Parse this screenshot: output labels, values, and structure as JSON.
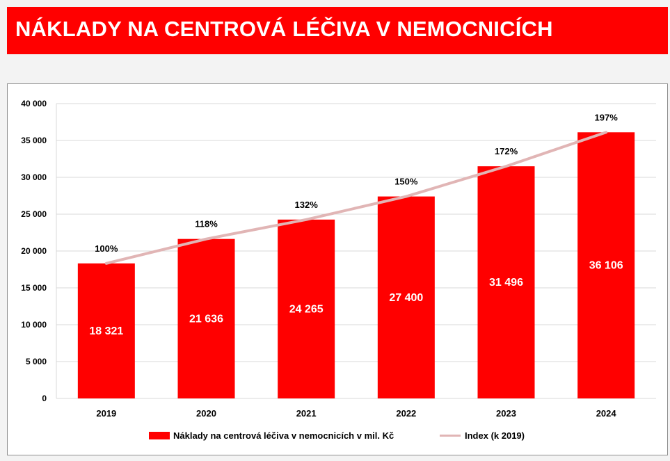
{
  "header": {
    "title": "NÁKLADY NA CENTROVÁ LÉČIVA V NEMOCNICÍCH"
  },
  "colors": {
    "accent": "#ff0000",
    "index_line": "#e1b5b5",
    "grid": "#d9d9d9"
  },
  "chart_data": {
    "type": "bar",
    "categories": [
      "2019",
      "2020",
      "2021",
      "2022",
      "2023",
      "2024"
    ],
    "series": [
      {
        "name": "Náklady na centrová léčiva v nemocnicích v mil. Kč",
        "type": "bar",
        "values": [
          18321,
          21636,
          24265,
          27400,
          31496,
          36106
        ],
        "labels": [
          "18 321",
          "21 636",
          "24 265",
          "27 400",
          "31 496",
          "36 106"
        ]
      },
      {
        "name": "Index (k 2019)",
        "type": "line",
        "values": [
          100,
          118,
          132,
          150,
          172,
          197
        ],
        "labels": [
          "100%",
          "118%",
          "132%",
          "150%",
          "172%",
          "197%"
        ]
      }
    ],
    "ylim": [
      0,
      40000
    ],
    "yticks": [
      0,
      5000,
      10000,
      15000,
      20000,
      25000,
      30000,
      35000,
      40000
    ],
    "ytick_labels": [
      "0",
      "5 000",
      "10 000",
      "15 000",
      "20 000",
      "25 000",
      "30 000",
      "35 000",
      "40 000"
    ],
    "grid": true,
    "legend_position": "bottom"
  }
}
